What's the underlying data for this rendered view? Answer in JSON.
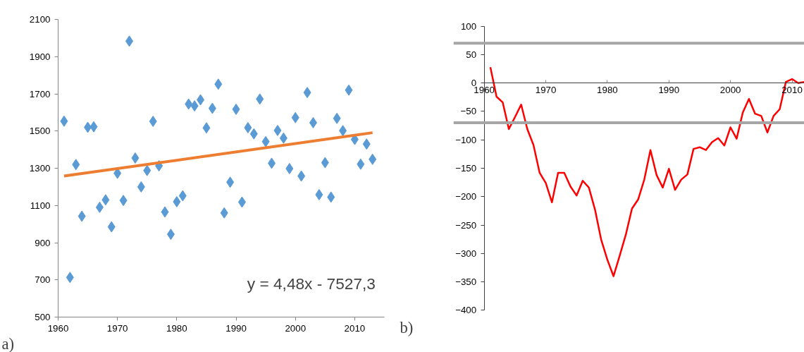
{
  "chart_data": [
    {
      "type": "scatter",
      "grid": false,
      "xlim": [
        1960,
        2015
      ],
      "ylim": [
        500,
        2100
      ],
      "xticks": [
        1960,
        1970,
        1980,
        1990,
        2000,
        2010
      ],
      "yticks": [
        500,
        700,
        900,
        1100,
        1300,
        1500,
        1700,
        1900,
        2100
      ],
      "annotations": [
        "y = 4,48x - 7527,3",
        "a)"
      ],
      "series": [
        {
          "type": "scatter",
          "marker": "diamond",
          "color": "#5b9bd5",
          "x": [
            1961,
            1962,
            1963,
            1964,
            1965,
            1966,
            1967,
            1968,
            1969,
            1970,
            1971,
            1972,
            1973,
            1974,
            1975,
            1976,
            1977,
            1978,
            1979,
            1980,
            1981,
            1982,
            1983,
            1984,
            1985,
            1986,
            1987,
            1988,
            1989,
            1990,
            1991,
            1992,
            1993,
            1994,
            1995,
            1996,
            1997,
            1998,
            1999,
            2000,
            2001,
            2002,
            2003,
            2004,
            2005,
            2006,
            2007,
            2008,
            2009,
            2010,
            2011,
            2012,
            2013
          ],
          "values": [
            1553,
            713,
            1320,
            1042,
            1520,
            1523,
            1090,
            1130,
            985,
            1273,
            1127,
            1983,
            1355,
            1200,
            1288,
            1552,
            1313,
            1065,
            945,
            1120,
            1152,
            1645,
            1635,
            1668,
            1517,
            1622,
            1752,
            1060,
            1225,
            1617,
            1118,
            1518,
            1485,
            1672,
            1443,
            1327,
            1503,
            1462,
            1298,
            1572,
            1258,
            1707,
            1545,
            1158,
            1330,
            1145,
            1568,
            1502,
            1720,
            1455,
            1322,
            1430,
            1348
          ]
        },
        {
          "type": "line",
          "color": "#ed7d31",
          "x": [
            1961,
            2013
          ],
          "values": [
            1258,
            1491
          ]
        }
      ]
    },
    {
      "type": "line",
      "grid": false,
      "xlim": [
        1960,
        2012
      ],
      "ylim": [
        -400,
        100
      ],
      "xticks": [
        1960,
        1970,
        1980,
        1990,
        2000,
        2010
      ],
      "yticks": [
        -400,
        -350,
        -300,
        -250,
        -200,
        -150,
        -100,
        -50,
        0,
        50,
        100
      ],
      "annotations": [
        "b)"
      ],
      "ref_lines": [
        {
          "axis": "y",
          "value": 70,
          "color": "#a6a6a6"
        },
        {
          "axis": "y",
          "value": -70,
          "color": "#a6a6a6"
        }
      ],
      "series": [
        {
          "color": "#ff0000",
          "x": [
            1961,
            1962,
            1963,
            1964,
            1965,
            1966,
            1967,
            1968,
            1969,
            1970,
            1971,
            1972,
            1973,
            1974,
            1975,
            1976,
            1977,
            1978,
            1979,
            1980,
            1981,
            1982,
            1983,
            1984,
            1985,
            1986,
            1987,
            1988,
            1989,
            1990,
            1991,
            1992,
            1993,
            1994,
            1995,
            1996,
            1997,
            1998,
            1999,
            2000,
            2001,
            2002,
            2003,
            2004,
            2005,
            2006,
            2007,
            2008,
            2009,
            2010,
            2011,
            2012
          ],
          "values": [
            28,
            -24,
            -34,
            -81,
            -60,
            -38,
            -81,
            -109,
            -158,
            -176,
            -210,
            -158,
            -158,
            -182,
            -198,
            -172,
            -184,
            -223,
            -276,
            -311,
            -340,
            -304,
            -267,
            -221,
            -205,
            -170,
            -118,
            -162,
            -184,
            -151,
            -188,
            -170,
            -161,
            -116,
            -113,
            -118,
            -104,
            -97,
            -110,
            -78,
            -98,
            -52,
            -28,
            -54,
            -58,
            -87,
            -58,
            -46,
            2,
            7,
            0,
            2
          ]
        }
      ]
    }
  ]
}
